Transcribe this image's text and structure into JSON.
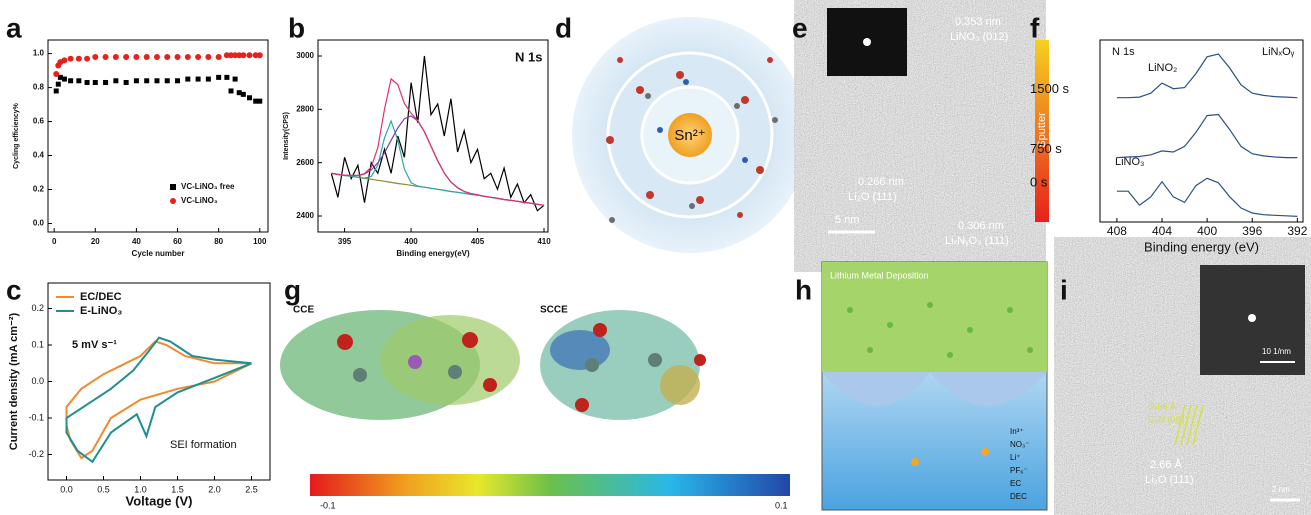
{
  "panel_labels": [
    "a",
    "b",
    "c",
    "d",
    "e",
    "f",
    "g",
    "h",
    "i"
  ],
  "chart_data": [
    {
      "type": "scatter",
      "x_label": "Cycle number",
      "y_label": "Cycling efficiency%",
      "x": [
        1,
        2,
        3,
        5,
        8,
        12,
        16,
        20,
        25,
        30,
        35,
        40,
        45,
        50,
        55,
        60,
        65,
        70,
        75,
        80,
        84,
        86,
        88,
        90,
        92,
        95,
        98,
        100
      ],
      "series": [
        {
          "name": "VC-LiNO₃ free",
          "color": "#000000",
          "marker": "square",
          "values": [
            0.78,
            0.82,
            0.86,
            0.85,
            0.84,
            0.84,
            0.83,
            0.83,
            0.83,
            0.84,
            0.83,
            0.84,
            0.84,
            0.84,
            0.84,
            0.84,
            0.85,
            0.85,
            0.85,
            0.86,
            0.86,
            0.78,
            0.85,
            0.77,
            0.76,
            0.74,
            0.72,
            0.72
          ]
        },
        {
          "name": "VC-LiNO₃",
          "color": "#e8201c",
          "marker": "circle",
          "values": [
            0.88,
            0.93,
            0.95,
            0.96,
            0.97,
            0.97,
            0.97,
            0.98,
            0.98,
            0.98,
            0.98,
            0.98,
            0.98,
            0.98,
            0.98,
            0.98,
            0.98,
            0.98,
            0.98,
            0.98,
            0.99,
            0.99,
            0.99,
            0.99,
            0.99,
            0.99,
            0.99,
            0.99
          ]
        }
      ],
      "xlim": [
        -3,
        104
      ],
      "xticks": [
        0,
        20,
        40,
        60,
        80,
        100
      ],
      "ylim": [
        -0.05,
        1.08
      ],
      "yticks": [
        {
          "value": 0,
          "label": "0.0"
        },
        0.2,
        0.4,
        0.6,
        0.8,
        {
          "value": 1,
          "label": "1.0"
        }
      ],
      "legend": "lower right"
    },
    {
      "type": "line",
      "x_label": "Binding energy(eV)",
      "y_label": "Intensity(CPS)",
      "annotations": [
        "N 1s"
      ],
      "x": [
        394,
        394.5,
        395,
        395.5,
        396,
        396.5,
        397,
        397.5,
        398,
        398.5,
        399,
        399.5,
        400,
        400.5,
        401,
        401.5,
        402,
        402.5,
        403,
        403.5,
        404,
        404.5,
        405,
        405.5,
        406,
        406.5,
        407,
        407.5,
        408,
        408.5,
        409,
        409.5,
        410
      ],
      "series": [
        {
          "color": "#000000",
          "values": [
            2560,
            2470,
            2620,
            2540,
            2590,
            2450,
            2600,
            2560,
            2650,
            2560,
            2700,
            2620,
            2900,
            2750,
            3000,
            2780,
            2820,
            2700,
            2840,
            2640,
            2720,
            2600,
            2650,
            2540,
            2560,
            2500,
            2580,
            2470,
            2520,
            2450,
            2480,
            2420,
            2440
          ]
        },
        {
          "color": "#8a8a2a",
          "values": [
            2560,
            2556,
            2552,
            2549,
            2545,
            2541,
            2538,
            2534,
            2530,
            2526,
            2522,
            2519,
            2515,
            2511,
            2508,
            2504,
            2500,
            2496,
            2492,
            2489,
            2485,
            2481,
            2478,
            2474,
            2470,
            2466,
            2462,
            2459,
            2455,
            2451,
            2448,
            2444,
            2440
          ]
        },
        {
          "color": "#2aa8a8",
          "values": [
            2560,
            2556,
            2552,
            2549,
            2545,
            2542,
            2548,
            2591,
            2693,
            2756,
            2685,
            2576,
            2525,
            2512,
            2508,
            2504,
            2500,
            2496,
            2492,
            2489,
            2485,
            2481,
            2478,
            2474,
            2470,
            2466,
            2462,
            2459,
            2455,
            2451,
            2448,
            2444,
            2440
          ]
        },
        {
          "color": "#7b3fa8",
          "values": [
            2560,
            2556,
            2553,
            2552,
            2552,
            2558,
            2573,
            2599,
            2637,
            2684,
            2730,
            2765,
            2775,
            2757,
            2716,
            2662,
            2607,
            2561,
            2527,
            2506,
            2492,
            2484,
            2479,
            2474,
            2470,
            2466,
            2462,
            2459,
            2455,
            2451,
            2448,
            2444,
            2440
          ]
        },
        {
          "color": "#e0306f",
          "values": [
            2560,
            2556,
            2553,
            2552,
            2552,
            2559,
            2583,
            2656,
            2800,
            2914,
            2893,
            2822,
            2785,
            2758,
            2716,
            2662,
            2607,
            2561,
            2527,
            2506,
            2492,
            2484,
            2479,
            2474,
            2470,
            2466,
            2462,
            2459,
            2455,
            2451,
            2448,
            2444,
            2440
          ]
        }
      ],
      "xlim": [
        393,
        410.3
      ],
      "xticks": [
        395,
        400,
        405,
        410
      ],
      "ylim": [
        2340,
        3060
      ],
      "yticks": [
        2400,
        2600,
        2800,
        3000
      ]
    },
    {
      "type": "line",
      "x_label": "Voltage (V)",
      "y_label": "Current density (mA cm⁻²)",
      "annotations": [
        "5 mV s⁻¹",
        "SEI formation"
      ],
      "series": [
        {
          "name": "EC/DEC",
          "color": "#f08a30",
          "x": [
            2.5,
            2.0,
            1.5,
            1.0,
            0.6,
            0.35,
            0.2,
            0.05,
            0.0,
            0.0,
            0.2,
            0.5,
            0.8,
            1.0,
            1.2,
            1.35,
            1.6,
            2.0,
            2.5
          ],
          "values": [
            0.05,
            0.0,
            -0.02,
            -0.05,
            -0.1,
            -0.19,
            -0.21,
            -0.16,
            -0.12,
            -0.07,
            -0.02,
            0.02,
            0.05,
            0.07,
            0.11,
            0.1,
            0.07,
            0.05,
            0.05
          ]
        },
        {
          "name": "E-LiNO₃",
          "color": "#1f8f8f",
          "x": [
            2.5,
            2.0,
            1.5,
            1.2,
            1.08,
            0.95,
            0.6,
            0.35,
            0.15,
            0.0,
            0.0,
            0.3,
            0.6,
            0.9,
            1.1,
            1.25,
            1.4,
            1.7,
            2.0,
            2.5
          ],
          "values": [
            0.05,
            0.01,
            -0.03,
            -0.07,
            -0.15,
            -0.09,
            -0.14,
            -0.22,
            -0.19,
            -0.14,
            -0.1,
            -0.06,
            -0.02,
            0.03,
            0.08,
            0.12,
            0.11,
            0.07,
            0.06,
            0.05
          ]
        }
      ],
      "xlim": [
        -0.25,
        2.75
      ],
      "xticks": [
        {
          "value": 0,
          "label": "0.0"
        },
        0.5,
        {
          "value": 1,
          "label": "1.0"
        },
        1.5,
        {
          "value": 2,
          "label": "2.0"
        },
        2.5
      ],
      "ylim": [
        -0.27,
        0.27
      ],
      "yticks": [
        -0.2,
        -0.1,
        {
          "value": 0,
          "label": "0.0"
        },
        0.1,
        0.2
      ],
      "legend": "upper left"
    },
    {
      "type": "line",
      "x_label": "Binding energy (eV)",
      "annotations": [
        "N 1s",
        "LiNO₂",
        "LiNₓOᵧ",
        "LiNO₃"
      ],
      "colorbar_label": "Sputter",
      "x": [
        408,
        407,
        406,
        405,
        404,
        403,
        402,
        401,
        400,
        399,
        398,
        397,
        396,
        395,
        394,
        393,
        392
      ],
      "series": [
        {
          "name": "1500 s",
          "color": "#2b4f8c",
          "values": [
            2.12,
            2.12,
            2.13,
            2.2,
            2.38,
            2.28,
            2.3,
            2.55,
            2.85,
            2.9,
            2.65,
            2.35,
            2.2,
            2.16,
            2.14,
            2.13,
            2.12
          ]
        },
        {
          "name": "750 s",
          "color": "#2b4f8c",
          "values": [
            1.05,
            1.06,
            1.07,
            1.1,
            1.17,
            1.15,
            1.25,
            1.5,
            1.8,
            1.82,
            1.55,
            1.25,
            1.12,
            1.08,
            1.06,
            1.05,
            1.05
          ]
        },
        {
          "name": "0 s",
          "color": "#2b4f8c",
          "values": [
            0.45,
            0.45,
            0.2,
            0.35,
            0.62,
            0.35,
            0.25,
            0.55,
            0.68,
            0.6,
            0.35,
            0.15,
            0.06,
            0.03,
            0.02,
            0.01,
            0.0
          ]
        }
      ],
      "xlim": [
        409.5,
        391.5
      ],
      "xticks": [
        408,
        404,
        400,
        396,
        392
      ],
      "ylim": [
        -0.1,
        3.15
      ]
    }
  ],
  "panel_d": {
    "ion": "Sn²⁺"
  },
  "panel_e": {
    "annotations": [
      "0.353 nm",
      "LiNO₃ (012)",
      "0.266 nm",
      "Li₂O (111)",
      "0.306 nm",
      "LiₓNᵧO₃ (111)"
    ],
    "scale_bar": "5 nm"
  },
  "panel_g": {
    "labels": [
      "CCE",
      "SCCE"
    ],
    "colorbar_ticks": [
      -0.1,
      0.1
    ]
  },
  "panel_h": {
    "title": "Lithium Metal Deposition",
    "legend": [
      "In³⁺",
      "NO₃⁻",
      "Li⁺",
      "PF₆⁻",
      "EC",
      "DEC"
    ]
  },
  "panel_i": {
    "annotations": [
      "3.88 Å",
      "Li₃N (001)",
      "2.66 Å",
      "Li₂O (111)"
    ],
    "scale_bars": [
      "10 1/nm",
      "2 nm"
    ]
  }
}
